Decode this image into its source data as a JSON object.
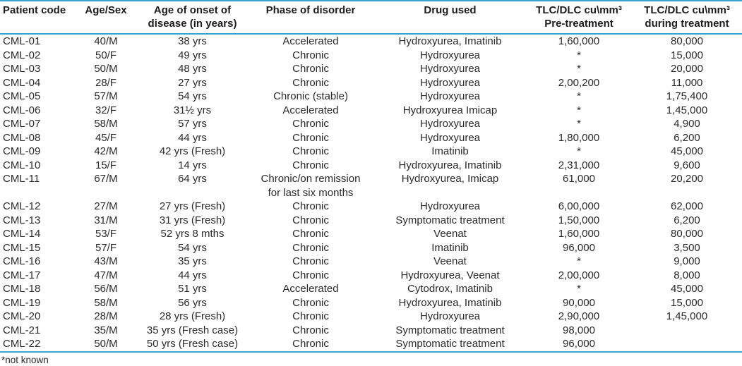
{
  "table": {
    "columns": [
      {
        "label": "Patient code"
      },
      {
        "label": "Age/Sex"
      },
      {
        "label": "Age of onset of\ndisease (in years)"
      },
      {
        "label": "Phase of disorder"
      },
      {
        "label": "Drug used"
      },
      {
        "label": "TLC/DLC cu\\mm³\nPre-treatment"
      },
      {
        "label": "TLC/DLC cu\\mm³\nduring treatment"
      }
    ],
    "rows": [
      [
        "CML-01",
        "40/M",
        "38 yrs",
        "Accelerated",
        "Hydroxyurea, Imatinib",
        "1,60,000",
        "80,000"
      ],
      [
        "CML-02",
        "50/F",
        "49 yrs",
        "Chronic",
        "Hydroxyurea",
        "*",
        "15,000"
      ],
      [
        "CML-03",
        "50/M",
        "48 yrs",
        "Chronic",
        "Hydroxyurea",
        "*",
        "20,000"
      ],
      [
        "CML-04",
        "28/F",
        "27 yrs",
        "Chronic",
        "Hydroxyurea",
        "2,00,200",
        "11,000"
      ],
      [
        "CML-05",
        "57/M",
        "54 yrs",
        "Chronic (stable)",
        "Hydroxyurea",
        "*",
        "1,75,400"
      ],
      [
        "CML-06",
        "32/F",
        "31½ yrs",
        "Accelerated",
        "Hydroxyurea Imicap",
        "*",
        "1,45,000"
      ],
      [
        "CML-07",
        "58/M",
        "57 yrs",
        "Chronic",
        "Hydroxyurea",
        "*",
        "4,900"
      ],
      [
        "CML-08",
        "45/F",
        "44 yrs",
        "Chronic",
        "Hydroxyurea",
        "1,80,000",
        "6,200"
      ],
      [
        "CML-09",
        "42/M",
        "42 yrs (Fresh)",
        "Chronic",
        "Imatinib",
        "*",
        "45,000"
      ],
      [
        "CML-10",
        "15/F",
        "14 yrs",
        "Chronic",
        "Hydroxyurea, Imatinib",
        "2,31,000",
        "9,600"
      ],
      [
        "CML-11",
        "67/M",
        "64 yrs",
        "Chronic/on remission\nfor last six months",
        "Hydroxyurea, Imicap",
        "61,000",
        "20,200"
      ],
      [
        "CML-12",
        "27/M",
        "27 yrs (Fresh)",
        "Chronic",
        "Hydroxyurea",
        "6,00,000",
        "62,000"
      ],
      [
        "CML-13",
        "31/M",
        "31 yrs (Fresh)",
        "Chronic",
        "Symptomatic treatment",
        "1,50,000",
        "6,200"
      ],
      [
        "CML-14",
        "53/F",
        "52 yrs 8 mths",
        "Chronic",
        "Veenat",
        "1,60,000",
        "80,000"
      ],
      [
        "CML-15",
        "57/F",
        "54 yrs",
        "Chronic",
        "Imatinib",
        "96,000",
        "3,500"
      ],
      [
        "CML-16",
        "43/M",
        "35 yrs",
        "Chronic",
        "Veenat",
        "*",
        "9,000"
      ],
      [
        "CML-17",
        "47/M",
        "44 yrs",
        "Chronic",
        "Hydroxyurea, Veenat",
        "2,00,000",
        "8,000"
      ],
      [
        "CML-18",
        "56/M",
        "51 yrs",
        "Accelerated",
        "Cytodrox, Imatinib",
        "*",
        "45,000"
      ],
      [
        "CML-19",
        "58/M",
        "56 yrs",
        "Chronic",
        "Hydroxyurea, Imatinib",
        "90,000",
        "15,000"
      ],
      [
        "CML-20",
        "28/M",
        "28 yrs (Fresh)",
        "Chronic",
        "Hydroxyurea",
        "2,90,000",
        "1,45,000"
      ],
      [
        "CML-21",
        "35/M",
        "35 yrs (Fresh case)",
        "Chronic",
        "Symptomatic treatment",
        "98,000",
        ""
      ],
      [
        "CML-22",
        "50/M",
        "50 yrs (Fresh case)",
        "Chronic",
        "Symptomatic treatment",
        "96,000",
        ""
      ]
    ],
    "footnote": "*not known",
    "rule_color": "#3aa3d2"
  }
}
